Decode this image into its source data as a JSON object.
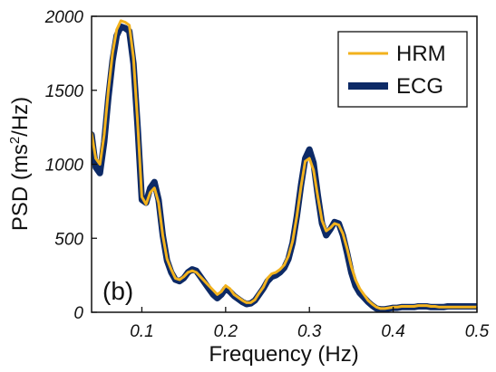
{
  "chart_data": {
    "type": "line",
    "panel_label": "(b)",
    "xlabel": "Frequency (Hz)",
    "ylabel": "PSD (ms2/Hz)",
    "ylabel_main": "PSD (ms",
    "ylabel_sup": "2",
    "ylabel_tail": "/Hz)",
    "xlim": [
      0.04,
      0.5
    ],
    "ylim": [
      0,
      2000
    ],
    "x_ticks": [
      0.1,
      0.2,
      0.3,
      0.4,
      0.5
    ],
    "x_tick_labels": [
      "0.1",
      "0.2",
      "0.3",
      "0.4",
      "0.5"
    ],
    "y_ticks": [
      0,
      500,
      1000,
      1500,
      2000
    ],
    "y_tick_labels": [
      "0",
      "500",
      "1000",
      "1500",
      "2000"
    ],
    "grid": false,
    "legend_position": "top-right",
    "series": [
      {
        "name": "ECG",
        "color": "#0d2a66",
        "style": "thick",
        "x": [
          0.04,
          0.045,
          0.05,
          0.055,
          0.06,
          0.065,
          0.07,
          0.075,
          0.08,
          0.085,
          0.09,
          0.095,
          0.1,
          0.105,
          0.11,
          0.115,
          0.12,
          0.125,
          0.13,
          0.135,
          0.14,
          0.145,
          0.15,
          0.155,
          0.16,
          0.165,
          0.17,
          0.175,
          0.18,
          0.185,
          0.19,
          0.195,
          0.2,
          0.205,
          0.21,
          0.215,
          0.22,
          0.225,
          0.23,
          0.235,
          0.24,
          0.245,
          0.25,
          0.255,
          0.26,
          0.265,
          0.27,
          0.275,
          0.28,
          0.285,
          0.29,
          0.295,
          0.3,
          0.305,
          0.31,
          0.315,
          0.32,
          0.325,
          0.33,
          0.335,
          0.34,
          0.345,
          0.35,
          0.355,
          0.36,
          0.365,
          0.37,
          0.375,
          0.38,
          0.385,
          0.39,
          0.395,
          0.4,
          0.405,
          0.41,
          0.415,
          0.42,
          0.425,
          0.43,
          0.435,
          0.44,
          0.445,
          0.45,
          0.455,
          0.46,
          0.465,
          0.47,
          0.475,
          0.48,
          0.485,
          0.49,
          0.495,
          0.5
        ],
        "y": [
          1200,
          980,
          940,
          1150,
          1450,
          1700,
          1870,
          1930,
          1920,
          1900,
          1680,
          1250,
          760,
          740,
          840,
          880,
          760,
          520,
          350,
          270,
          220,
          210,
          230,
          270,
          290,
          280,
          240,
          200,
          160,
          120,
          95,
          120,
          160,
          140,
          110,
          90,
          70,
          55,
          60,
          80,
          120,
          160,
          210,
          240,
          250,
          270,
          300,
          360,
          470,
          650,
          860,
          1040,
          1100,
          1010,
          790,
          600,
          520,
          560,
          610,
          600,
          520,
          400,
          270,
          180,
          130,
          100,
          70,
          45,
          25,
          20,
          20,
          25,
          30,
          30,
          35,
          35,
          35,
          35,
          40,
          40,
          40,
          35,
          35,
          35,
          35,
          40,
          40,
          40,
          40,
          40,
          40,
          40,
          40
        ]
      },
      {
        "name": "HRM",
        "color": "#f2b21d",
        "style": "thin",
        "x": [
          0.04,
          0.045,
          0.05,
          0.055,
          0.06,
          0.065,
          0.07,
          0.075,
          0.08,
          0.085,
          0.09,
          0.095,
          0.1,
          0.105,
          0.11,
          0.115,
          0.12,
          0.125,
          0.13,
          0.135,
          0.14,
          0.145,
          0.15,
          0.155,
          0.16,
          0.165,
          0.17,
          0.175,
          0.18,
          0.185,
          0.19,
          0.195,
          0.2,
          0.205,
          0.21,
          0.215,
          0.22,
          0.225,
          0.23,
          0.235,
          0.24,
          0.245,
          0.25,
          0.255,
          0.26,
          0.265,
          0.27,
          0.275,
          0.28,
          0.285,
          0.29,
          0.295,
          0.3,
          0.305,
          0.31,
          0.315,
          0.32,
          0.325,
          0.33,
          0.335,
          0.34,
          0.345,
          0.35,
          0.355,
          0.36,
          0.365,
          0.37,
          0.375,
          0.38,
          0.385,
          0.39,
          0.395,
          0.4,
          0.405,
          0.41,
          0.415,
          0.42,
          0.425,
          0.43,
          0.435,
          0.44,
          0.445,
          0.45,
          0.455,
          0.46,
          0.465,
          0.47,
          0.475,
          0.48,
          0.485,
          0.49,
          0.495,
          0.5
        ],
        "y": [
          1210,
          1040,
          1000,
          1200,
          1500,
          1750,
          1910,
          1970,
          1960,
          1940,
          1720,
          1280,
          780,
          730,
          810,
          840,
          740,
          520,
          360,
          290,
          230,
          220,
          240,
          270,
          280,
          270,
          240,
          210,
          180,
          150,
          120,
          140,
          180,
          160,
          120,
          100,
          80,
          65,
          65,
          85,
          130,
          170,
          230,
          260,
          270,
          290,
          320,
          380,
          480,
          650,
          850,
          1020,
          1040,
          960,
          780,
          620,
          550,
          570,
          600,
          590,
          530,
          430,
          310,
          220,
          160,
          120,
          80,
          55,
          35,
          25,
          25,
          30,
          35,
          35,
          40,
          40,
          40,
          40,
          45,
          45,
          45,
          40,
          40,
          35,
          35,
          35,
          35,
          35,
          35,
          35,
          35,
          35,
          35
        ]
      }
    ]
  }
}
